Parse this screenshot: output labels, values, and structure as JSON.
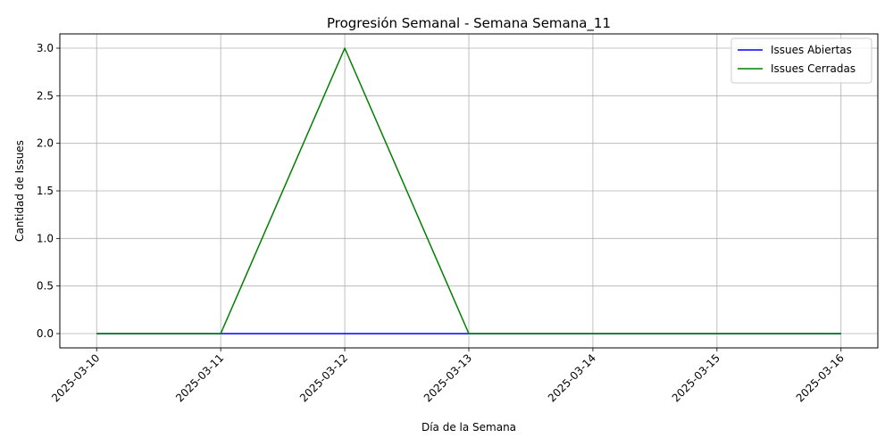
{
  "chart_data": {
    "type": "line",
    "title": "Progresión Semanal - Semana Semana_11",
    "xlabel": "Día de la Semana",
    "ylabel": "Cantidad de Issues",
    "categories": [
      "2025-03-10",
      "2025-03-11",
      "2025-03-12",
      "2025-03-13",
      "2025-03-14",
      "2025-03-15",
      "2025-03-16"
    ],
    "series": [
      {
        "name": "Issues Abiertas",
        "color": "#0000ff",
        "values": [
          0,
          0,
          0,
          0,
          0,
          0,
          0
        ]
      },
      {
        "name": "Issues Cerradas",
        "color": "#008000",
        "values": [
          0,
          0,
          3,
          0,
          0,
          0,
          0
        ]
      }
    ],
    "ylim": [
      -0.15,
      3.15
    ],
    "yticks": [
      "0.0",
      "0.5",
      "1.0",
      "1.5",
      "2.0",
      "2.5",
      "3.0"
    ],
    "grid": true,
    "legend": "top-right"
  }
}
